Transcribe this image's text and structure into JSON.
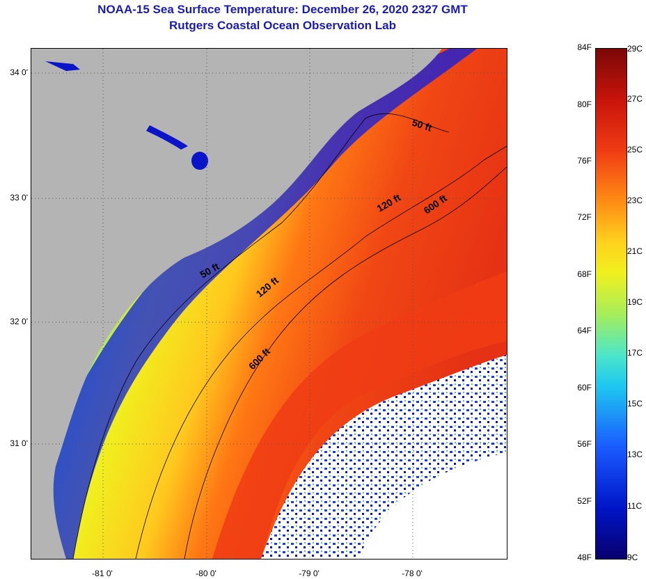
{
  "title": {
    "line1": "NOAA-15 Sea Surface Temperature:  December 26, 2020 2327 GMT",
    "line2": "Rutgers Coastal Ocean Observation Lab"
  },
  "map": {
    "lat_labels": [
      "34 0'",
      "33 0'",
      "32 0'",
      "31 0'"
    ],
    "lon_labels": [
      "-81 0'",
      "-80 0'",
      "-79 0'",
      "-78 0'"
    ],
    "contour_labels": [
      "50 ft",
      "50 ft",
      "120 ft",
      "120 ft",
      "600 ft",
      "600 ft"
    ],
    "colors": {
      "land": "#b4b4b4",
      "cloud": "#ffffff",
      "coastal_cold": "#0a1ee6",
      "mid": "#1ec8f0",
      "warm_shelf": "#f0f01e",
      "gulf_stream": "#f04614"
    }
  },
  "colorbar": {
    "fahrenheit": [
      "84F",
      "80F",
      "76F",
      "72F",
      "68F",
      "64F",
      "60F",
      "56F",
      "52F",
      "48F"
    ],
    "celsius": [
      "29C",
      "27C",
      "25C",
      "23C",
      "21C",
      "19C",
      "17C",
      "15C",
      "13C",
      "11C",
      "9C"
    ]
  }
}
